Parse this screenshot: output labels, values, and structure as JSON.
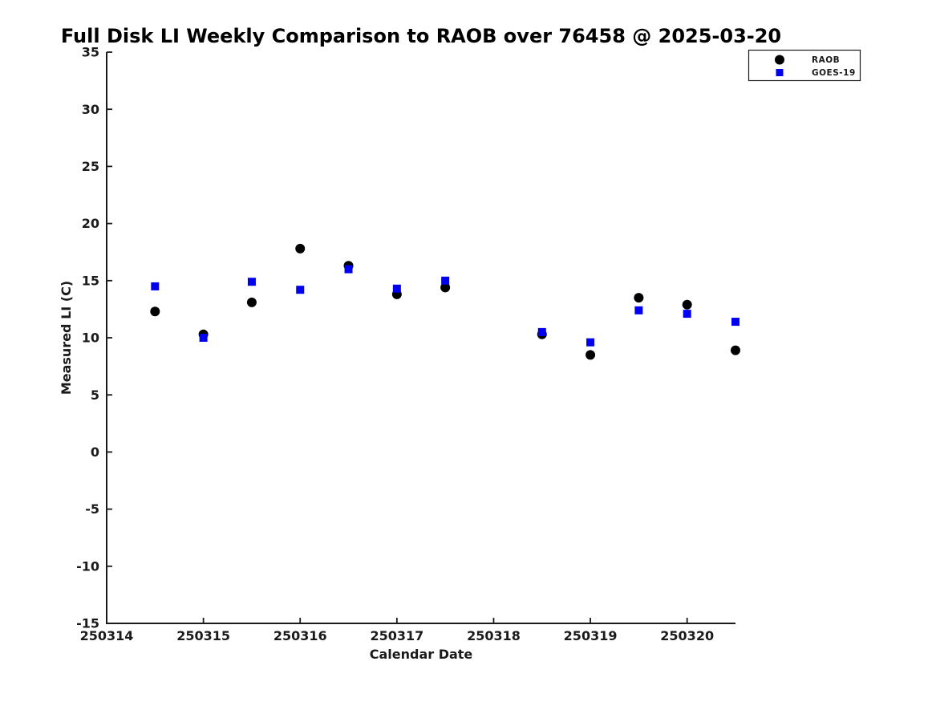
{
  "chart_data": {
    "type": "scatter",
    "title": "Full Disk LI Weekly Comparison to RAOB over 76458 @ 2025-03-20",
    "xlabel": "Calendar Date",
    "ylabel": "Measured LI (C)",
    "xlim": [
      250314,
      250320.5
    ],
    "ylim": [
      -15,
      35
    ],
    "xticks": [
      250314,
      250315,
      250316,
      250317,
      250318,
      250319,
      250320
    ],
    "yticks": [
      -15,
      -10,
      -5,
      0,
      5,
      10,
      15,
      20,
      25,
      30,
      35
    ],
    "grid": false,
    "legend_position": "top-right",
    "x": [
      250314.5,
      250315,
      250315.5,
      250316,
      250316.5,
      250317,
      250317.5,
      250318.5,
      250319,
      250319.5,
      250320,
      250320.5
    ],
    "series": [
      {
        "name": "RAOB",
        "marker": "circle",
        "color": "#000000",
        "values": [
          12.3,
          10.3,
          13.1,
          17.8,
          16.3,
          13.8,
          14.4,
          10.3,
          8.5,
          13.5,
          12.9,
          8.9
        ]
      },
      {
        "name": "GOES-19",
        "marker": "square",
        "color": "#0000EE",
        "values": [
          14.5,
          10.0,
          14.9,
          14.2,
          16.0,
          14.3,
          15.0,
          10.5,
          9.6,
          12.4,
          12.1,
          11.4
        ]
      }
    ]
  }
}
